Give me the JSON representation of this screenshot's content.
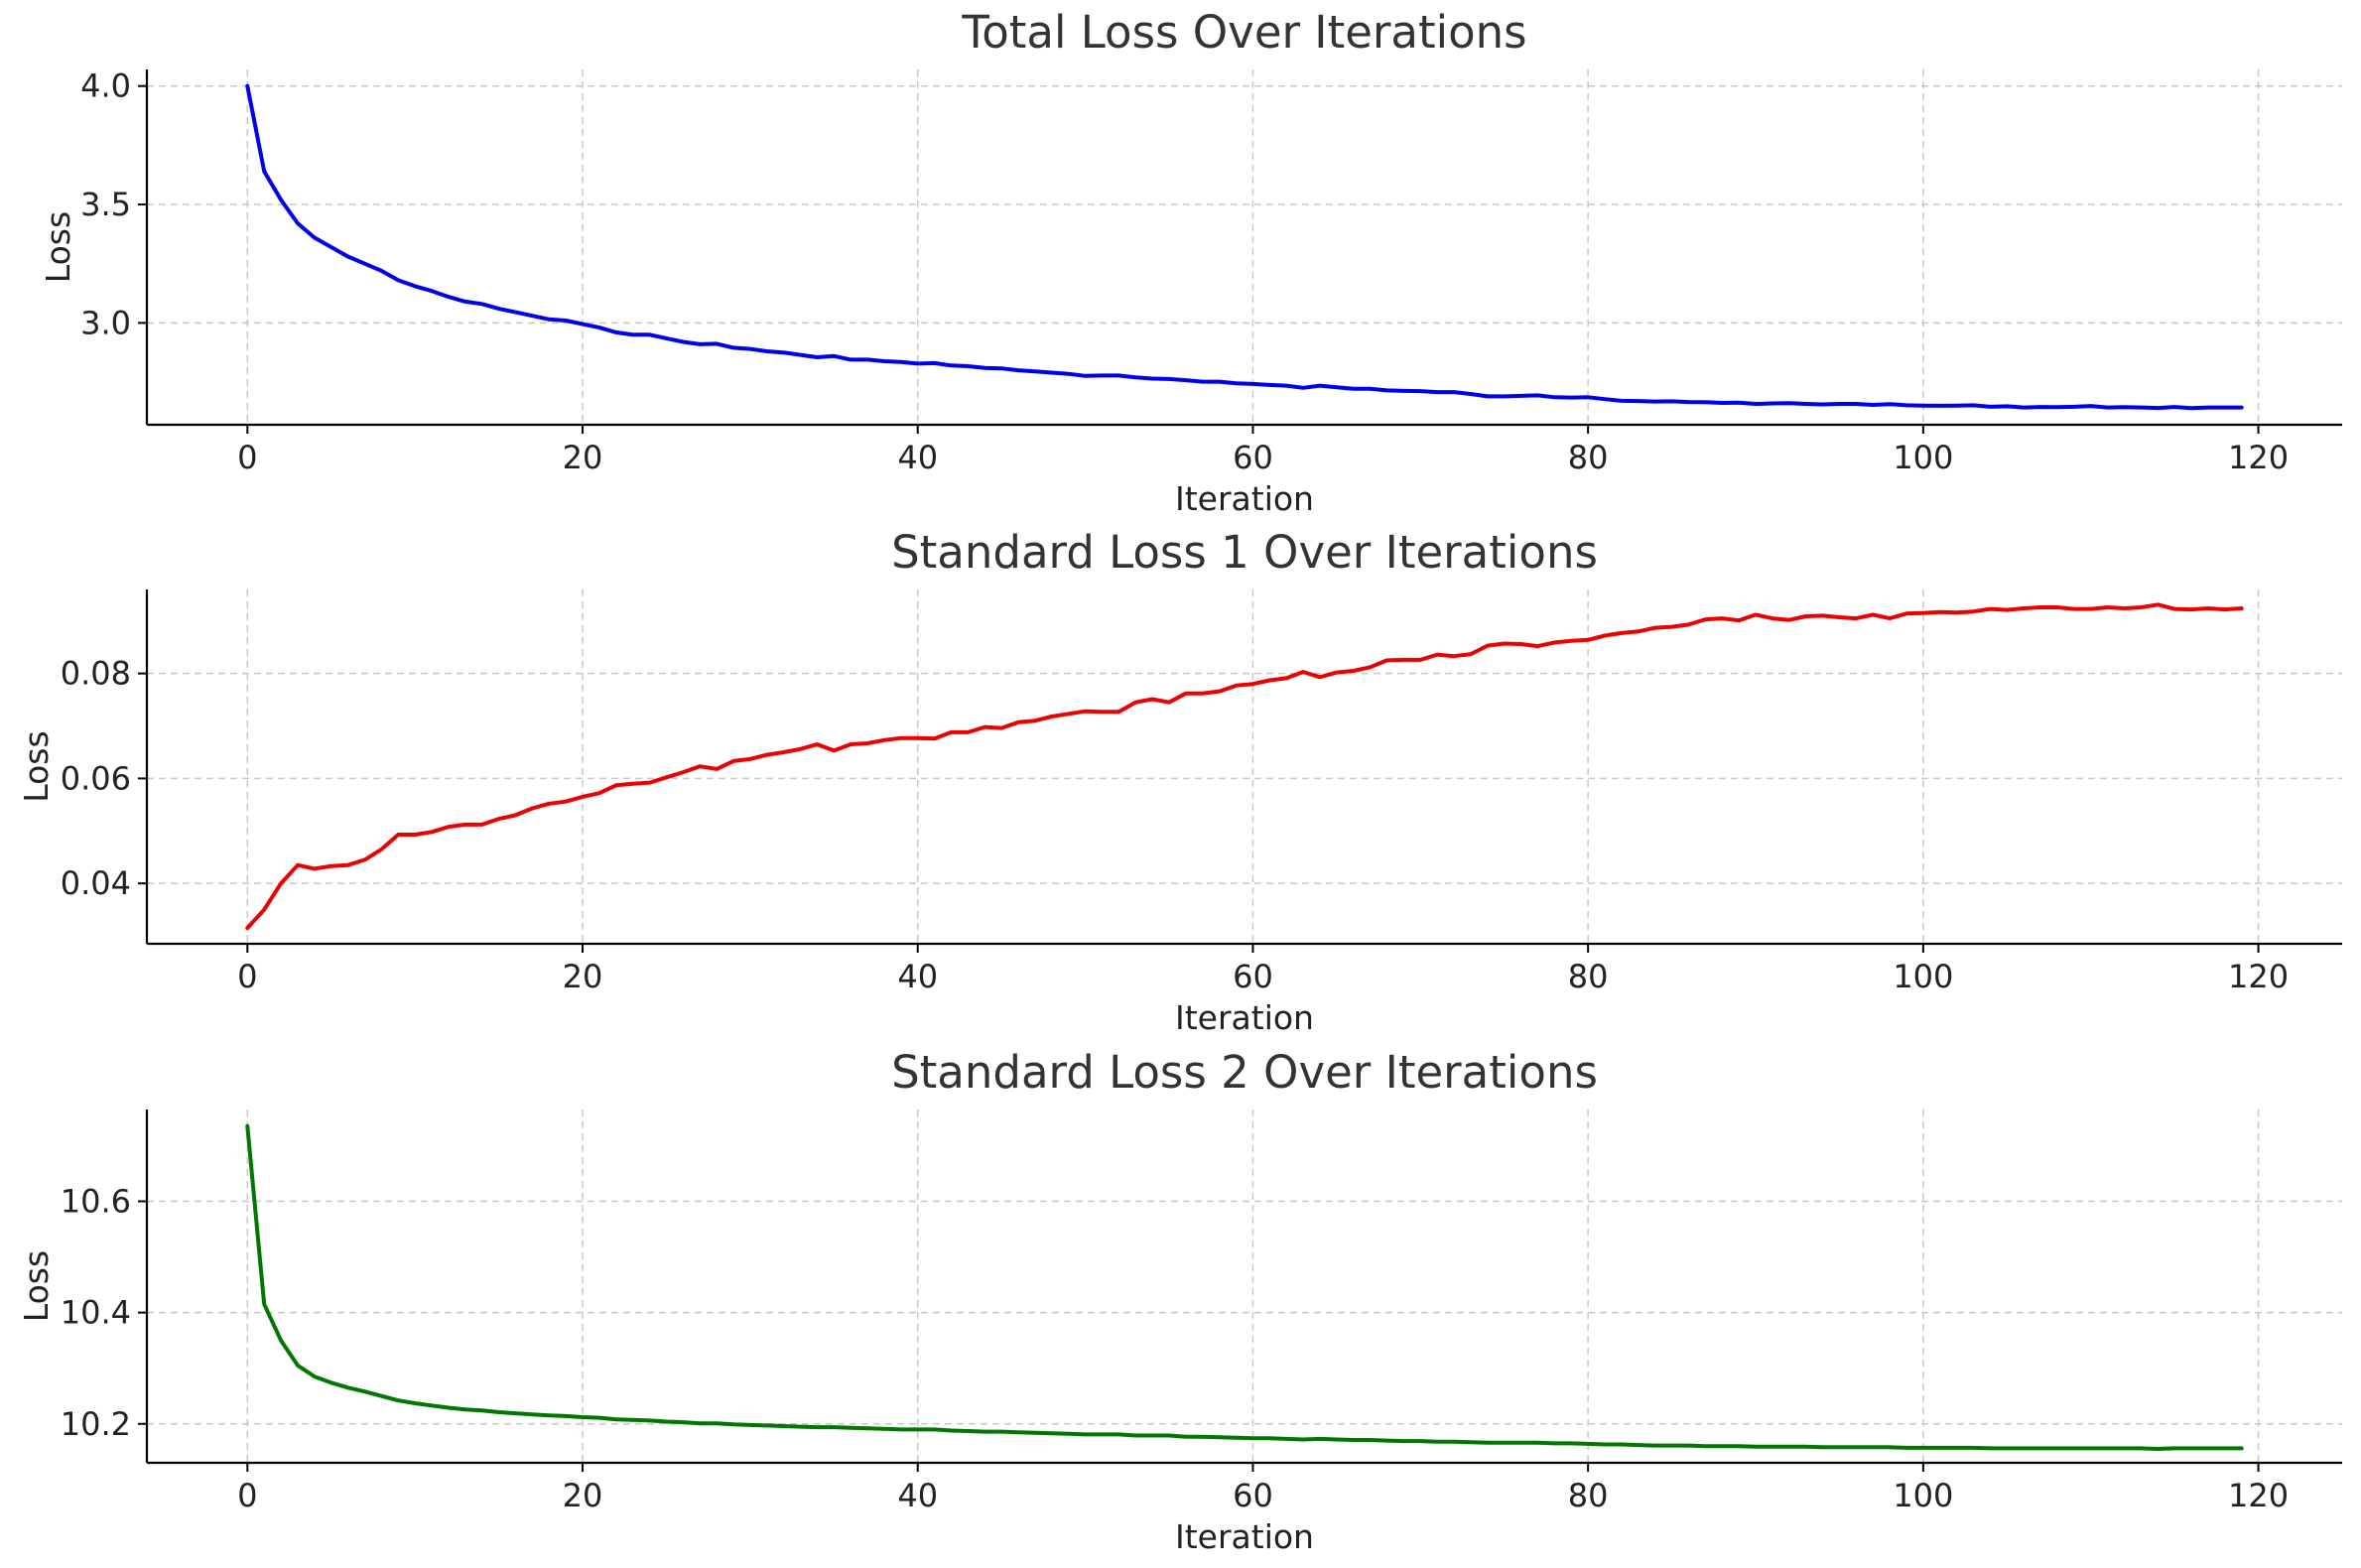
{
  "chart_data": [
    {
      "type": "line",
      "title": "Total Loss Over Iterations",
      "xlabel": "Iteration",
      "ylabel": "Loss",
      "xlim": [
        -6,
        125
      ],
      "ylim": [
        2.57,
        4.07
      ],
      "xticks": [
        0,
        20,
        40,
        60,
        80,
        100,
        120
      ],
      "yticks": [
        3.0,
        3.5,
        4.0
      ],
      "ytick_decimals": 1,
      "grid": true,
      "color": "#0000ee",
      "series": [
        {
          "values": [
            4.0,
            3.64,
            3.52,
            3.42,
            3.36,
            3.32,
            3.28,
            3.25,
            3.22,
            3.18,
            3.155,
            3.135,
            3.11,
            3.09,
            3.08,
            3.06,
            3.045,
            3.03,
            3.015,
            3.01,
            2.995,
            2.98,
            2.96,
            2.95,
            2.95,
            2.935,
            2.92,
            2.91,
            2.912,
            2.895,
            2.89,
            2.88,
            2.875,
            2.865,
            2.855,
            2.86,
            2.845,
            2.845,
            2.838,
            2.835,
            2.828,
            2.83,
            2.82,
            2.817,
            2.81,
            2.808,
            2.8,
            2.795,
            2.79,
            2.785,
            2.776,
            2.778,
            2.778,
            2.77,
            2.765,
            2.763,
            2.758,
            2.752,
            2.752,
            2.745,
            2.742,
            2.738,
            2.735,
            2.726,
            2.735,
            2.728,
            2.722,
            2.722,
            2.715,
            2.713,
            2.712,
            2.708,
            2.708,
            2.7,
            2.69,
            2.69,
            2.692,
            2.694,
            2.686,
            2.685,
            2.686,
            2.678,
            2.671,
            2.67,
            2.668,
            2.669,
            2.666,
            2.665,
            2.662,
            2.663,
            2.658,
            2.66,
            2.661,
            2.658,
            2.656,
            2.658,
            2.658,
            2.654,
            2.657,
            2.652,
            2.651,
            2.65,
            2.651,
            2.652,
            2.646,
            2.648,
            2.643,
            2.645,
            2.644,
            2.646,
            2.649,
            2.643,
            2.644,
            2.643,
            2.641,
            2.645,
            2.64,
            2.643,
            2.643,
            2.643
          ]
        }
      ]
    },
    {
      "type": "line",
      "title": "Standard Loss 1 Over Iterations",
      "xlabel": "Iteration",
      "ylabel": "Loss",
      "xlim": [
        -6,
        125
      ],
      "ylim": [
        0.0285,
        0.096
      ],
      "xticks": [
        0,
        20,
        40,
        60,
        80,
        100,
        120
      ],
      "yticks": [
        0.04,
        0.06,
        0.08
      ],
      "ytick_decimals": 2,
      "grid": true,
      "color": "#ee0000",
      "series": [
        {
          "values": [
            0.0315,
            0.035,
            0.04,
            0.0435,
            0.0428,
            0.0433,
            0.0435,
            0.0445,
            0.0465,
            0.0493,
            0.0493,
            0.0498,
            0.0508,
            0.0512,
            0.0512,
            0.0523,
            0.053,
            0.0543,
            0.0552,
            0.0556,
            0.0565,
            0.0572,
            0.0587,
            0.059,
            0.0592,
            0.0602,
            0.0612,
            0.0623,
            0.0618,
            0.0633,
            0.0637,
            0.0645,
            0.065,
            0.0656,
            0.0665,
            0.0653,
            0.0665,
            0.0667,
            0.0673,
            0.0677,
            0.0677,
            0.0676,
            0.0688,
            0.0688,
            0.0698,
            0.0696,
            0.0707,
            0.071,
            0.0718,
            0.0723,
            0.0728,
            0.0727,
            0.0727,
            0.0745,
            0.0751,
            0.0745,
            0.0762,
            0.0762,
            0.0766,
            0.0777,
            0.078,
            0.0787,
            0.0791,
            0.0803,
            0.0793,
            0.0802,
            0.0805,
            0.0812,
            0.0825,
            0.0826,
            0.0826,
            0.0836,
            0.0833,
            0.0837,
            0.0853,
            0.0857,
            0.0856,
            0.0852,
            0.0859,
            0.0862,
            0.0864,
            0.0872,
            0.0877,
            0.088,
            0.0887,
            0.0889,
            0.0893,
            0.0903,
            0.0905,
            0.0901,
            0.0912,
            0.0905,
            0.0902,
            0.0909,
            0.091,
            0.0907,
            0.0905,
            0.0912,
            0.0905,
            0.0914,
            0.0915,
            0.0917,
            0.0916,
            0.0918,
            0.0923,
            0.0921,
            0.0924,
            0.0926,
            0.0926,
            0.0923,
            0.0923,
            0.0926,
            0.0924,
            0.0926,
            0.0931,
            0.0923,
            0.0922,
            0.0924,
            0.0922,
            0.0924
          ]
        }
      ]
    },
    {
      "type": "line",
      "title": "Standard Loss 2 Over Iterations",
      "xlabel": "Iteration",
      "ylabel": "Loss",
      "xlim": [
        -6,
        125
      ],
      "ylim": [
        10.13,
        10.765
      ],
      "xticks": [
        0,
        20,
        40,
        60,
        80,
        100,
        120
      ],
      "yticks": [
        10.2,
        10.4,
        10.6
      ],
      "ytick_decimals": 1,
      "grid": true,
      "color": "#007700",
      "series": [
        {
          "values": [
            10.735,
            10.415,
            10.35,
            10.305,
            10.285,
            10.274,
            10.265,
            10.258,
            10.25,
            10.242,
            10.237,
            10.233,
            10.229,
            10.226,
            10.224,
            10.221,
            10.219,
            10.217,
            10.215,
            10.214,
            10.212,
            10.211,
            10.208,
            10.207,
            10.206,
            10.204,
            10.203,
            10.201,
            10.201,
            10.199,
            10.198,
            10.197,
            10.196,
            10.195,
            10.194,
            10.194,
            10.193,
            10.192,
            10.191,
            10.19,
            10.19,
            10.19,
            10.188,
            10.187,
            10.186,
            10.186,
            10.185,
            10.184,
            10.183,
            10.182,
            10.181,
            10.181,
            10.181,
            10.179,
            10.179,
            10.179,
            10.177,
            10.177,
            10.176,
            10.175,
            10.174,
            10.174,
            10.173,
            10.172,
            10.173,
            10.172,
            10.171,
            10.171,
            10.17,
            10.169,
            10.169,
            10.168,
            10.168,
            10.167,
            10.166,
            10.166,
            10.166,
            10.166,
            10.165,
            10.165,
            10.164,
            10.163,
            10.163,
            10.162,
            10.161,
            10.161,
            10.161,
            10.16,
            10.16,
            10.16,
            10.159,
            10.159,
            10.159,
            10.159,
            10.158,
            10.158,
            10.158,
            10.158,
            10.158,
            10.157,
            10.157,
            10.157,
            10.157,
            10.157,
            10.156,
            10.156,
            10.156,
            10.156,
            10.156,
            10.156,
            10.156,
            10.156,
            10.156,
            10.156,
            10.155,
            10.156,
            10.156,
            10.156,
            10.156,
            10.156
          ]
        }
      ]
    }
  ]
}
